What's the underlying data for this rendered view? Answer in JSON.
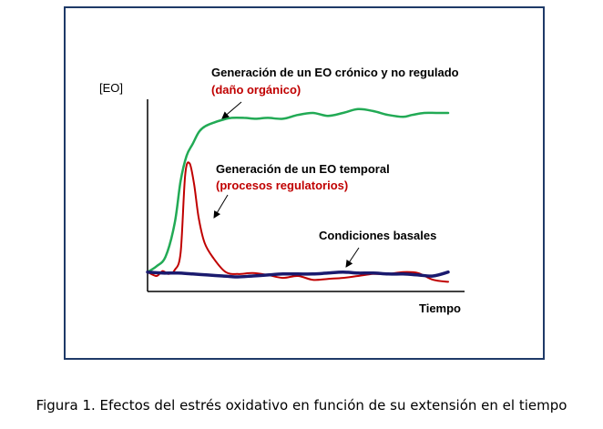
{
  "caption": "Figura 1. Efectos del estrés oxidativo en función de su extensión en el tiempo",
  "chart_data": {
    "type": "line",
    "ylabel": "[EO]",
    "xlabel": "Tiempo",
    "xlim": [
      0,
      100
    ],
    "ylim": [
      0,
      100
    ],
    "grid": false,
    "colors": {
      "chronic": "#22aa55",
      "temporal": "#c00000",
      "basal": "#1a1a6e"
    },
    "series": [
      {
        "key": "chronic",
        "name": "Generación de un EO crónico y no regulado",
        "sub": "(daño orgánico)",
        "x": [
          0,
          3,
          6,
          9,
          11,
          13,
          15,
          17,
          19,
          22,
          25,
          28,
          32,
          36,
          40,
          45,
          50,
          55,
          60,
          65,
          70,
          75,
          80,
          85,
          88,
          92,
          96,
          100
        ],
        "y": [
          10,
          13,
          18,
          35,
          57,
          70,
          76,
          82,
          85,
          87,
          88.5,
          89.5,
          89.5,
          89,
          89.5,
          89,
          91,
          92,
          90.5,
          92,
          94,
          93,
          91,
          90,
          91,
          92,
          92,
          92
        ]
      },
      {
        "key": "temporal",
        "name": "Generación de un EO temporal",
        "sub": "(procesos regulatorios)",
        "x": [
          0,
          3,
          5,
          7,
          9,
          11,
          12.5,
          14,
          15.5,
          17,
          19,
          22,
          26,
          30,
          35,
          40,
          45,
          50,
          55,
          60,
          65,
          70,
          75,
          80,
          85,
          90,
          95,
          100
        ],
        "y": [
          10,
          8,
          10.5,
          9,
          11,
          20,
          60,
          66,
          55,
          38,
          25,
          17,
          10,
          9,
          9.5,
          8.5,
          7,
          8,
          6,
          6.5,
          7,
          8,
          9,
          9,
          10,
          9.5,
          6,
          5
        ]
      },
      {
        "key": "basal",
        "name": "Condiciones basales",
        "x": [
          0,
          5,
          10,
          15,
          20,
          25,
          30,
          35,
          40,
          45,
          50,
          55,
          60,
          65,
          70,
          75,
          80,
          85,
          90,
          95,
          100
        ],
        "y": [
          10,
          9.5,
          9.5,
          9,
          8.5,
          8,
          7.5,
          8,
          8.5,
          9,
          9,
          9,
          9.5,
          10,
          9.5,
          9.5,
          9,
          9,
          8.5,
          8,
          10
        ]
      }
    ]
  }
}
